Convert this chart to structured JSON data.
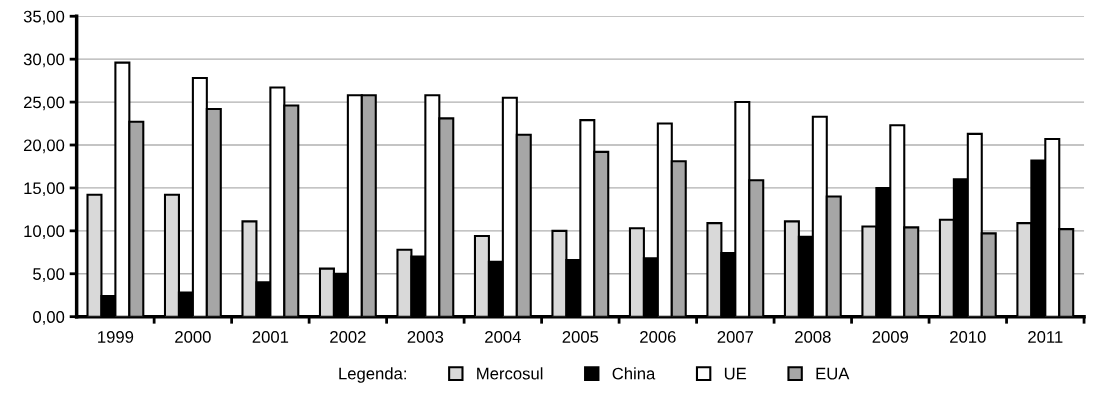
{
  "chart_data": {
    "type": "bar",
    "legend_title": "Legenda:",
    "legend": "bottom",
    "grid": "y",
    "categories": [
      "1999",
      "2000",
      "2001",
      "2002",
      "2003",
      "2004",
      "2005",
      "2006",
      "2007",
      "2008",
      "2009",
      "2010",
      "2011"
    ],
    "series": [
      {
        "name": "Mercosul",
        "color": "#d9d9d9",
        "values": [
          14.2,
          14.2,
          11.1,
          5.6,
          7.8,
          9.4,
          10.0,
          10.3,
          10.9,
          11.1,
          10.5,
          11.3,
          10.9
        ]
      },
      {
        "name": "China",
        "color": "#000000",
        "values": [
          2.4,
          2.8,
          4.0,
          5.0,
          7.0,
          6.4,
          6.6,
          6.8,
          7.4,
          9.3,
          15.0,
          16.0,
          18.2
        ]
      },
      {
        "name": "UE",
        "color": "#ffffff",
        "values": [
          29.6,
          27.8,
          26.7,
          25.8,
          25.8,
          25.5,
          22.9,
          22.5,
          25.0,
          23.3,
          22.3,
          21.3,
          20.7
        ]
      },
      {
        "name": "EUA",
        "color": "#a6a6a6",
        "values": [
          22.7,
          24.2,
          24.6,
          25.8,
          23.1,
          21.2,
          19.2,
          18.1,
          15.9,
          14.0,
          10.4,
          9.7,
          10.2
        ]
      }
    ],
    "ylim": [
      0,
      35
    ],
    "yticks": [
      {
        "value": 0,
        "label": "0,00"
      },
      {
        "value": 5,
        "label": "5,00"
      },
      {
        "value": 10,
        "label": "10,00"
      },
      {
        "value": 15,
        "label": "15,00"
      },
      {
        "value": 20,
        "label": "20,00"
      },
      {
        "value": 25,
        "label": "25,00"
      },
      {
        "value": 30,
        "label": "30,00"
      },
      {
        "value": 35,
        "label": "35,00"
      }
    ]
  }
}
